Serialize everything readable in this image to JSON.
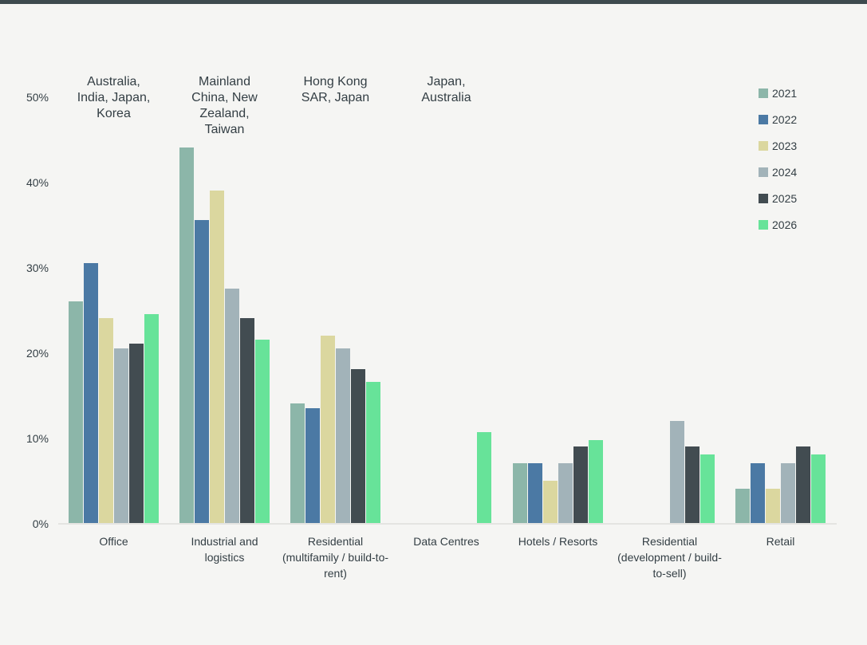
{
  "page": {
    "background_color": "#f5f5f3",
    "top_accent_color": "#3e4a4e",
    "text_color": "#333e44",
    "baseline_color": "#e4e4e1"
  },
  "chart_data": {
    "type": "bar",
    "title": "",
    "xlabel": "",
    "ylabel": "",
    "ylim": [
      0,
      50
    ],
    "y_ticks": [
      {
        "value": 50,
        "label": "50%"
      },
      {
        "value": 40,
        "label": "40%"
      },
      {
        "value": 30,
        "label": "30%"
      },
      {
        "value": 20,
        "label": "20%"
      },
      {
        "value": 10,
        "label": "10%"
      },
      {
        "value": 0,
        "label": "0%"
      }
    ],
    "grid": false,
    "legend_position": "top-right",
    "categories": [
      "Office",
      "Industrial and logistics",
      "Residential (multifamily / build-to-rent)",
      "Data Centres",
      "Hotels / Resorts",
      "Residential (development / build-to-sell)",
      "Retail"
    ],
    "group_annotations": [
      {
        "category_index": 0,
        "text": "Australia, India, Japan, Korea"
      },
      {
        "category_index": 1,
        "text": "Mainland China, New Zealand, Taiwan"
      },
      {
        "category_index": 2,
        "text": "Hong Kong SAR, Japan"
      },
      {
        "category_index": 3,
        "text": "Japan, Australia"
      }
    ],
    "series": [
      {
        "name": "2021",
        "color": "#8cb6a9",
        "values": [
          26,
          44,
          14,
          null,
          7,
          null,
          4
        ]
      },
      {
        "name": "2022",
        "color": "#4b79a4",
        "values": [
          30.5,
          35.5,
          13.5,
          null,
          7,
          null,
          7
        ]
      },
      {
        "name": "2023",
        "color": "#dbd79f",
        "values": [
          24,
          39,
          22,
          null,
          5,
          null,
          4
        ]
      },
      {
        "name": "2024",
        "color": "#a2b3b9",
        "values": [
          20.5,
          27.5,
          20.5,
          null,
          7,
          12,
          7
        ]
      },
      {
        "name": "2025",
        "color": "#424c51",
        "values": [
          21,
          24,
          18,
          null,
          9,
          9,
          9
        ]
      },
      {
        "name": "2026",
        "color": "#67e399",
        "values": [
          24.5,
          21.5,
          16.5,
          10.7,
          9.7,
          8,
          8
        ]
      }
    ]
  }
}
